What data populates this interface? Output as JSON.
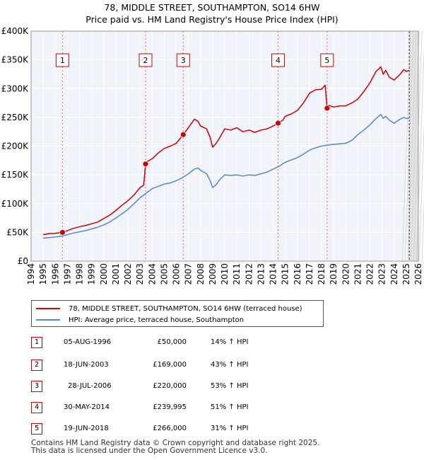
{
  "chart_data": {
    "type": "line",
    "title": "78, MIDDLE STREET, SOUTHAMPTON, SO14 6HW",
    "subtitle": "Price paid vs. HM Land Registry's House Price Index (HPI)",
    "xlim": [
      1994,
      2026
    ],
    "ylim": [
      0,
      400000
    ],
    "x_ticks": [
      1994,
      1995,
      1996,
      1997,
      1998,
      1999,
      2000,
      2001,
      2002,
      2003,
      2004,
      2005,
      2006,
      2007,
      2008,
      2009,
      2010,
      2011,
      2012,
      2013,
      2014,
      2015,
      2016,
      2017,
      2018,
      2019,
      2020,
      2021,
      2022,
      2023,
      2024,
      2025,
      2026
    ],
    "y_ticks": [
      {
        "value": 0,
        "label": "£0"
      },
      {
        "value": 50000,
        "label": "£50K"
      },
      {
        "value": 100000,
        "label": "£100K"
      },
      {
        "value": 150000,
        "label": "£150K"
      },
      {
        "value": 200000,
        "label": "£200K"
      },
      {
        "value": 250000,
        "label": "£250K"
      },
      {
        "value": 300000,
        "label": "£300K"
      },
      {
        "value": 350000,
        "label": "£350K"
      },
      {
        "value": 400000,
        "label": "£400K"
      }
    ],
    "grid": true,
    "data_end_year": 2025.25,
    "series": [
      {
        "name": "78, MIDDLE STREET, SOUTHAMPTON, SO14 6HW (terraced house)",
        "color": "#cc0000",
        "x": [
          1995.0,
          1995.5,
          1996.0,
          1996.59,
          1997.0,
          1997.5,
          1998.0,
          1998.5,
          1999.0,
          1999.5,
          2000.0,
          2000.5,
          2001.0,
          2001.5,
          2002.0,
          2002.5,
          2003.0,
          2003.3,
          2003.46,
          2003.5,
          2004.0,
          2004.5,
          2005.0,
          2005.5,
          2006.0,
          2006.57,
          2007.0,
          2007.5,
          2007.8,
          2008.0,
          2008.5,
          2008.8,
          2009.0,
          2009.3,
          2009.6,
          2010.0,
          2010.5,
          2011.0,
          2011.5,
          2012.0,
          2012.5,
          2013.0,
          2013.5,
          2014.0,
          2014.41,
          2014.8,
          2015.0,
          2015.5,
          2016.0,
          2016.5,
          2017.0,
          2017.5,
          2018.0,
          2018.3,
          2018.46,
          2018.6,
          2019.0,
          2019.5,
          2020.0,
          2020.5,
          2021.0,
          2021.5,
          2022.0,
          2022.5,
          2022.9,
          2023.1,
          2023.3,
          2023.6,
          2024.0,
          2024.5,
          2024.8,
          2025.0,
          2025.25
        ],
        "y": [
          46000,
          48000,
          48500,
          50000,
          53000,
          57000,
          60000,
          62000,
          65000,
          68000,
          74000,
          80000,
          88000,
          97000,
          105000,
          115000,
          128000,
          132000,
          169000,
          172000,
          178000,
          188000,
          196000,
          200000,
          205000,
          220000,
          232000,
          247000,
          243000,
          235000,
          230000,
          215000,
          198000,
          205000,
          215000,
          230000,
          228000,
          232000,
          225000,
          228000,
          224000,
          228000,
          230000,
          235000,
          239995,
          245000,
          252000,
          256000,
          262000,
          275000,
          292000,
          298000,
          299000,
          306000,
          266000,
          271000,
          268000,
          270000,
          270000,
          275000,
          282000,
          295000,
          310000,
          330000,
          338000,
          325000,
          332000,
          320000,
          315000,
          325000,
          333000,
          330000,
          332000
        ]
      },
      {
        "name": "HPI: Average price, terraced house, Southampton",
        "color": "#5588cc",
        "x": [
          1995.0,
          1995.5,
          1996.0,
          1996.5,
          1997.0,
          1997.5,
          1998.0,
          1998.5,
          1999.0,
          1999.5,
          2000.0,
          2000.5,
          2001.0,
          2001.5,
          2002.0,
          2002.5,
          2003.0,
          2003.5,
          2004.0,
          2004.5,
          2005.0,
          2005.5,
          2006.0,
          2006.5,
          2007.0,
          2007.5,
          2007.8,
          2008.0,
          2008.5,
          2008.8,
          2009.0,
          2009.3,
          2009.6,
          2010.0,
          2010.5,
          2011.0,
          2011.5,
          2012.0,
          2012.5,
          2013.0,
          2013.5,
          2014.0,
          2014.5,
          2015.0,
          2015.5,
          2016.0,
          2016.5,
          2017.0,
          2017.5,
          2018.0,
          2018.5,
          2019.0,
          2019.5,
          2020.0,
          2020.5,
          2021.0,
          2021.5,
          2022.0,
          2022.5,
          2022.9,
          2023.1,
          2023.3,
          2023.6,
          2024.0,
          2024.5,
          2024.8,
          2025.0,
          2025.25
        ],
        "y": [
          40000,
          41000,
          42000,
          43500,
          46000,
          49000,
          51000,
          53000,
          56000,
          59000,
          63000,
          68000,
          75000,
          82000,
          90000,
          100000,
          110000,
          118000,
          126000,
          130000,
          134000,
          136000,
          140000,
          145000,
          152000,
          160000,
          162000,
          158000,
          152000,
          140000,
          128000,
          133000,
          142000,
          150000,
          149000,
          150000,
          148000,
          150000,
          149000,
          152000,
          155000,
          160000,
          165000,
          172000,
          176000,
          180000,
          186000,
          193000,
          197000,
          200000,
          202000,
          203000,
          204000,
          205000,
          210000,
          220000,
          228000,
          237000,
          248000,
          255000,
          248000,
          252000,
          245000,
          240000,
          247000,
          250000,
          248000,
          249000
        ]
      }
    ],
    "sales": [
      {
        "num": "1",
        "x": 1996.59,
        "y": 50000,
        "date": "05-AUG-1996",
        "price": "£50,000",
        "hpi": "14% ↑ HPI"
      },
      {
        "num": "2",
        "x": 2003.46,
        "y": 169000,
        "date": "18-JUN-2003",
        "price": "£169,000",
        "hpi": "43% ↑ HPI"
      },
      {
        "num": "3",
        "x": 2006.57,
        "y": 220000,
        "date": "28-JUL-2006",
        "price": "£220,000",
        "hpi": "53% ↑ HPI"
      },
      {
        "num": "4",
        "x": 2014.41,
        "y": 239995,
        "date": "30-MAY-2014",
        "price": "£239,995",
        "hpi": "51% ↑ HPI"
      },
      {
        "num": "5",
        "x": 2018.46,
        "y": 266000,
        "date": "19-JUN-2018",
        "price": "£266,000",
        "hpi": "31% ↑ HPI"
      }
    ]
  },
  "legend": {
    "property_label": "78, MIDDLE STREET, SOUTHAMPTON, SO14 6HW (terraced house)",
    "hpi_label": "HPI: Average price, terraced house, Southampton",
    "property_color": "#cc0000",
    "hpi_color": "#5588cc"
  },
  "footer": {
    "line1": "Contains HM Land Registry data © Crown copyright and database right 2025.",
    "line2": "This data is licensed under the Open Government Licence v3.0."
  }
}
